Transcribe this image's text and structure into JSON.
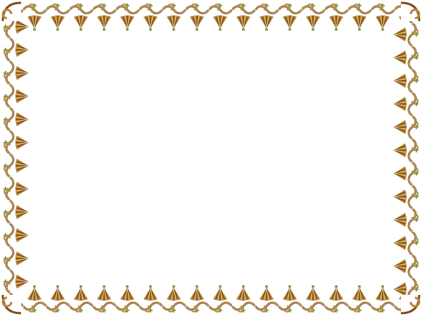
{
  "frame": {
    "style": "ornamental border",
    "colors": {
      "gold": "#b8863a",
      "brown": "#7a4a1e",
      "green": "#8a9a4a",
      "highlight": "#e8c77a",
      "background": "#ffffff"
    },
    "motifs": [
      "scroll-wave",
      "fan-leaf",
      "corner-flourish"
    ]
  }
}
